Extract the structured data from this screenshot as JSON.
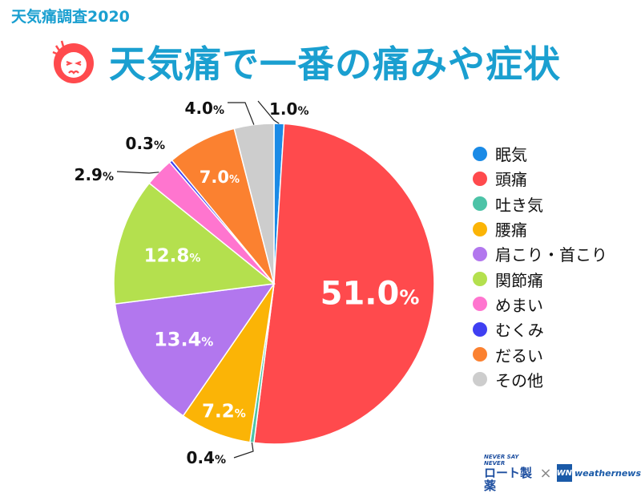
{
  "header": {
    "survey_label": "天気痛調査2020",
    "title": "天気痛で一番の痛みや症状"
  },
  "chart_data": {
    "type": "pie",
    "title": "天気痛で一番の痛みや症状",
    "unit": "%",
    "categories": [
      "眠気",
      "頭痛",
      "吐き気",
      "腰痛",
      "肩こり・首こり",
      "関節痛",
      "めまい",
      "むくみ",
      "だるい",
      "その他"
    ],
    "values": [
      1.0,
      51.0,
      0.4,
      7.2,
      13.4,
      12.8,
      2.9,
      0.3,
      7.0,
      4.0
    ],
    "labels": [
      "1.0",
      "51.0",
      "0.4",
      "7.2",
      "13.4",
      "12.8",
      "2.9",
      "0.3",
      "7.0",
      "4.0"
    ],
    "colors": [
      "#1a8ae6",
      "#ff4a4d",
      "#4cc3a7",
      "#fbb406",
      "#b277ee",
      "#b4e04e",
      "#ff75cf",
      "#3f3ff2",
      "#fb8130",
      "#cdcdcd"
    ],
    "start_angle": "12 o'clock",
    "direction": "clockwise",
    "legend_position": "right"
  },
  "logos": {
    "rohto_tagline": "NEVER SAY NEVER",
    "rohto_name": "ロート製薬",
    "separator": "×",
    "wn_mark": "WN",
    "wn_name": "weathernews"
  }
}
